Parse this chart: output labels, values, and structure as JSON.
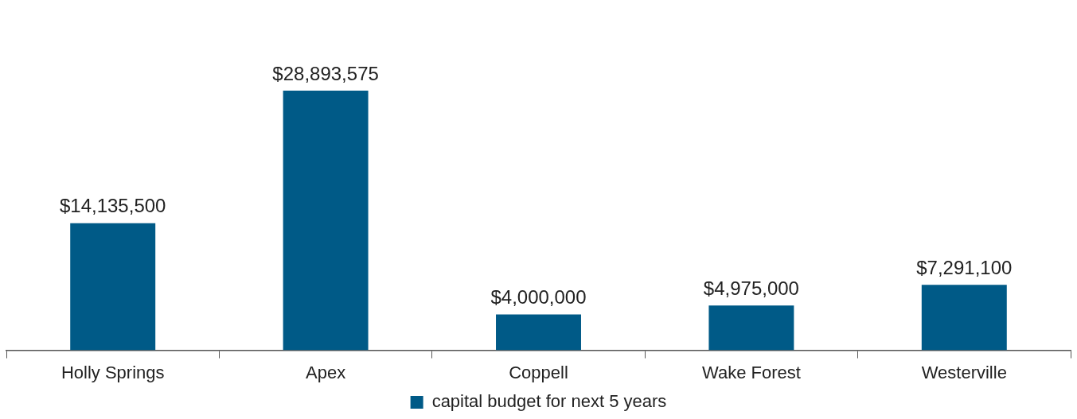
{
  "chart_data": {
    "type": "bar",
    "categories": [
      "Holly Springs",
      "Apex",
      "Coppell",
      "Wake Forest",
      "Westerville"
    ],
    "series": [
      {
        "name": "capital budget for next 5 years",
        "color": "#005a87",
        "values": [
          14135500,
          28893575,
          4000000,
          4975000,
          7291100
        ],
        "value_labels": [
          "$14,135,500",
          "$28,893,575",
          "$4,000,000",
          "$4,975,000",
          "$7,291,100"
        ]
      }
    ],
    "tick_labels": "x",
    "grid": false,
    "legend": "bottom"
  }
}
